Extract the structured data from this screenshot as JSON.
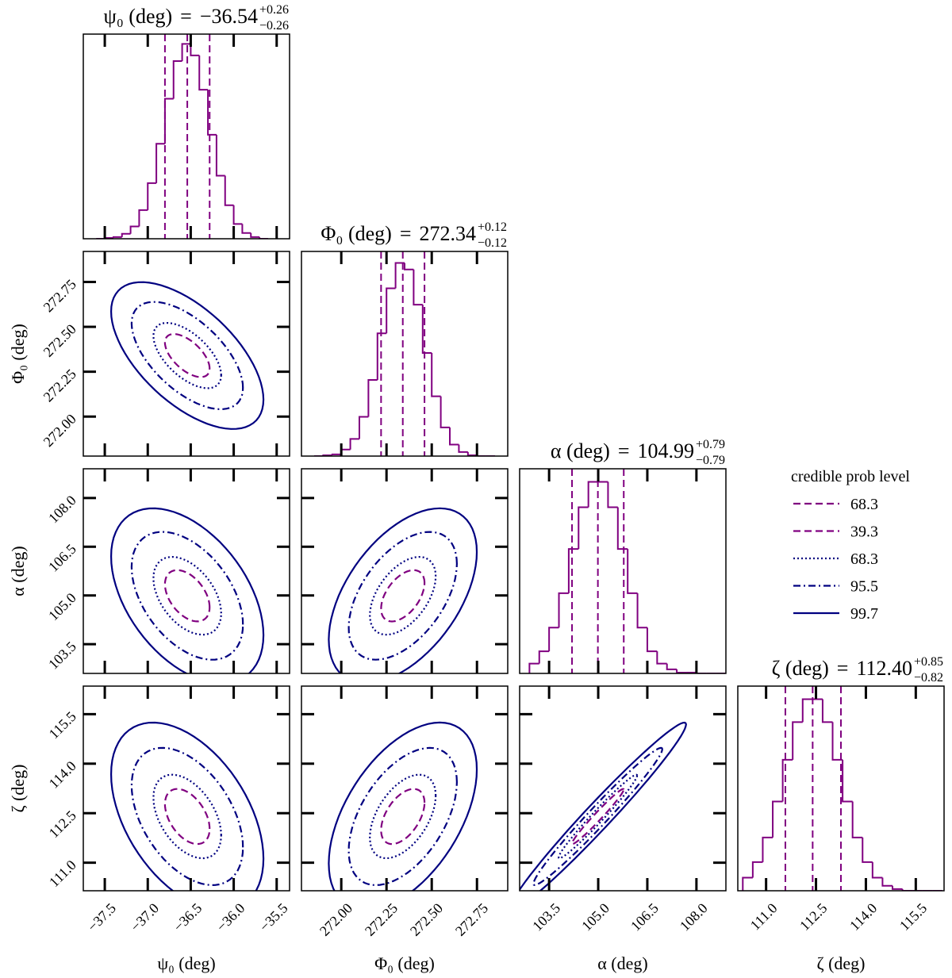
{
  "chart_data": {
    "type": "corner",
    "equals": "=",
    "hist_color": "#800080",
    "hist_ylim": [
      0,
      250
    ],
    "params": [
      {
        "label": "ψ₀ (deg)",
        "median": -36.54,
        "median_label": "−36.54",
        "plus": 0.26,
        "plus_label": "+0.26",
        "minus": 0.26,
        "minus_label": "−0.26",
        "lim": [
          -37.75,
          -35.35
        ],
        "ticks": [
          {
            "value": -37.5,
            "label": "−37.5"
          },
          {
            "value": -37,
            "label": "−37.0"
          },
          {
            "value": -36.5,
            "label": "−36.5"
          },
          {
            "value": -36,
            "label": "−36.0"
          },
          {
            "value": -35.5,
            "label": "−35.5"
          }
        ],
        "bins": [
          -37.6,
          -37.5,
          -37.4,
          -37.3,
          -37.2,
          -37.1,
          -37.0,
          -36.9,
          -36.8,
          -36.7,
          -36.6,
          -36.5,
          -36.4,
          -36.3,
          -36.2,
          -36.1,
          -36.0,
          -35.9,
          -35.8,
          -35.7,
          -35.6
        ],
        "counts": [
          0,
          1,
          2,
          6,
          15,
          35,
          68,
          116,
          171,
          217,
          238,
          224,
          182,
          127,
          77,
          41,
          18,
          7,
          2,
          0
        ]
      },
      {
        "label": "Φ₀ (deg)",
        "median": 272.34,
        "median_label": "272.34",
        "plus": 0.12,
        "plus_label": "+0.12",
        "minus": 0.12,
        "minus_label": "−0.12",
        "lim": [
          271.78,
          272.92
        ],
        "ticks": [
          {
            "value": 272,
            "label": "272.00"
          },
          {
            "value": 272.25,
            "label": "272.25"
          },
          {
            "value": 272.5,
            "label": "272.50"
          },
          {
            "value": 272.75,
            "label": "272.75"
          }
        ],
        "bins": [
          271.85,
          271.9,
          271.95,
          272.0,
          272.05,
          272.1,
          272.15,
          272.2,
          272.25,
          272.3,
          272.35,
          272.4,
          272.45,
          272.5,
          272.55,
          272.6,
          272.65,
          272.7,
          272.75,
          272.8,
          272.85
        ],
        "counts": [
          0,
          1,
          2,
          8,
          21,
          48,
          93,
          150,
          205,
          236,
          228,
          185,
          126,
          73,
          35,
          14,
          5,
          1,
          0,
          0
        ]
      },
      {
        "label": "α (deg)",
        "median": 104.99,
        "median_label": "104.99",
        "plus": 0.79,
        "plus_label": "+0.79",
        "minus": 0.79,
        "minus_label": "−0.79",
        "lim": [
          102.6,
          108.9
        ],
        "ticks": [
          103.5,
          {
            "value": 105,
            "label": "105.0"
          },
          106.5,
          {
            "value": 108,
            "label": "108.0"
          }
        ],
        "bins": [
          102.9,
          103.2,
          103.5,
          103.8,
          104.1,
          104.4,
          104.7,
          105.0,
          105.3,
          105.6,
          105.9,
          106.2,
          106.5,
          106.8,
          107.1,
          107.4,
          107.7,
          108.0,
          108.3,
          108.6,
          108.9
        ],
        "counts": [
          12,
          27,
          56,
          98,
          152,
          203,
          234,
          234,
          203,
          152,
          98,
          56,
          27,
          12,
          5,
          1,
          1,
          0,
          0,
          0
        ]
      },
      {
        "label": "ζ (deg)",
        "median": 112.4,
        "median_label": "112.40",
        "plus": 0.85,
        "plus_label": "+0.85",
        "minus": 0.82,
        "minus_label": "−0.82",
        "lim": [
          110.15,
          116.35
        ],
        "ticks": [
          {
            "value": 111,
            "label": "111.0"
          },
          112.5,
          {
            "value": 114,
            "label": "114.0"
          },
          115.5
        ],
        "bins": [
          110.3,
          110.6,
          110.9,
          111.2,
          111.5,
          111.8,
          112.1,
          112.4,
          112.7,
          113.0,
          113.3,
          113.6,
          113.9,
          114.2,
          114.5,
          114.8,
          115.1,
          115.4,
          115.7,
          116.0,
          116.3
        ],
        "counts": [
          16,
          35,
          65,
          109,
          160,
          206,
          234,
          234,
          206,
          160,
          109,
          65,
          35,
          16,
          6,
          2,
          0,
          0,
          0,
          0
        ]
      }
    ],
    "pairs": [
      {
        "row": 1,
        "col": 0,
        "correlation": -0.6
      },
      {
        "row": 2,
        "col": 0,
        "correlation": -0.45
      },
      {
        "row": 2,
        "col": 1,
        "correlation": 0.5
      },
      {
        "row": 3,
        "col": 0,
        "correlation": -0.45
      },
      {
        "row": 3,
        "col": 1,
        "correlation": 0.5
      },
      {
        "row": 3,
        "col": 2,
        "correlation": 0.98
      }
    ],
    "legend": {
      "title": "credible prob level",
      "entries": [
        {
          "level": 68.3,
          "color": "#800080",
          "dash": "dashed"
        },
        {
          "level": 39.3,
          "color": "#800080",
          "dash": "dashed"
        },
        {
          "level": 68.3,
          "color": "#000080",
          "dash": "dotted"
        },
        {
          "level": 95.5,
          "color": "#000080",
          "dash": "dashdot"
        },
        {
          "level": 99.7,
          "color": "#000080",
          "dash": "solid"
        }
      ]
    }
  }
}
